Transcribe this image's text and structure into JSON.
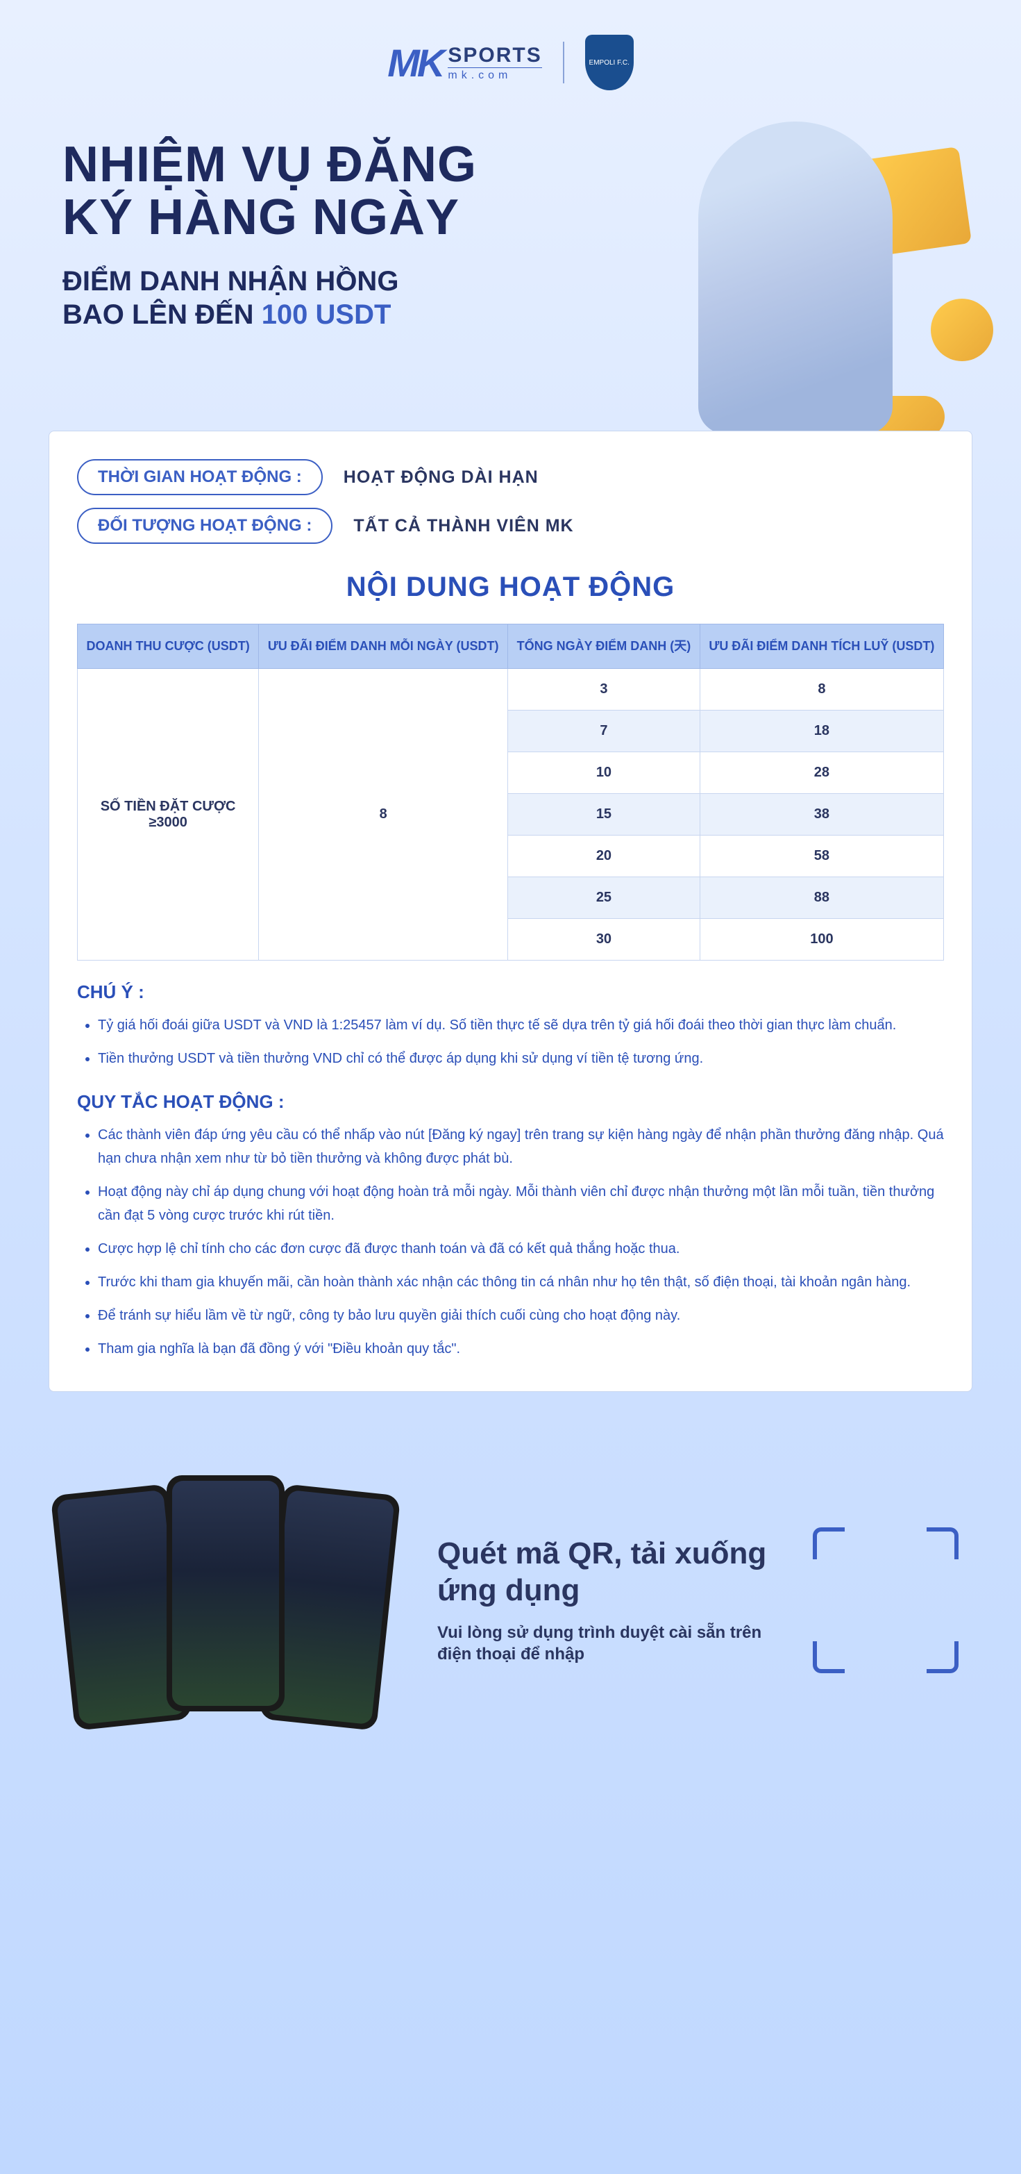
{
  "header": {
    "logo_mk": "MK",
    "logo_sports": "SPORTS",
    "logo_domain": "mk.com",
    "shield_text": "EMPOLI F.C."
  },
  "hero": {
    "title_line1": "NHIỆM VỤ ĐĂNG",
    "title_line2": "KÝ HÀNG NGÀY",
    "subtitle_line1": "ĐIỂM DANH NHẬN HỒNG",
    "subtitle_line2_prefix": "BAO LÊN ĐẾN ",
    "subtitle_amount": "100 USDT"
  },
  "info": {
    "time_label": "THỜI GIAN HOẠT ĐỘNG :",
    "time_value": "HOẠT ĐỘNG DÀI HẠN",
    "target_label": "ĐỐI TƯỢNG HOẠT ĐỘNG :",
    "target_value": "TẤT CẢ THÀNH VIÊN MK"
  },
  "section_title": "NỘI DUNG HOẠT ĐỘNG",
  "table": {
    "headers": {
      "col1": "DOANH THU CƯỢC (USDT)",
      "col2": "ƯU ĐÃI ĐIỂM DANH MỖI NGÀY (USDT)",
      "col3": "TỔNG NGÀY ĐIỂM DANH (天)",
      "col4": "ƯU ĐÃI ĐIỂM DANH TÍCH LUỸ (USDT)"
    },
    "merged_col1": "SỐ TIỀN ĐẶT CƯỢC ≥3000",
    "merged_col2": "8",
    "rows": [
      {
        "days": "3",
        "reward": "8"
      },
      {
        "days": "7",
        "reward": "18"
      },
      {
        "days": "10",
        "reward": "28"
      },
      {
        "days": "15",
        "reward": "38"
      },
      {
        "days": "20",
        "reward": "58"
      },
      {
        "days": "25",
        "reward": "88"
      },
      {
        "days": "30",
        "reward": "100"
      }
    ]
  },
  "notes": {
    "chu_y_title": "CHÚ Ý :",
    "chu_y_items": [
      "Tỷ giá hối đoái giữa USDT và VND là 1:25457 làm ví dụ. Số tiền thực tế sẽ dựa trên tỷ giá hối đoái theo thời gian thực làm chuẩn.",
      "Tiền thưởng USDT và tiền thưởng VND chỉ có thể được áp dụng khi sử dụng ví tiền tệ tương ứng."
    ],
    "quy_tac_title": "QUY TẮC HOẠT ĐỘNG :",
    "quy_tac_items": [
      "Các thành viên đáp ứng yêu cầu có thể nhấp vào nút [Đăng ký ngay] trên trang sự kiện hàng ngày để nhận phần thưởng đăng nhập. Quá hạn chưa nhận xem như từ bỏ tiền thưởng và không được phát bù.",
      "Hoạt động này chỉ áp dụng chung với hoạt động hoàn trả mỗi ngày. Mỗi thành viên chỉ được nhận thưởng một lần mỗi tuần, tiền thưởng cần đạt 5 vòng cược trước khi rút tiền.",
      "Cược hợp lệ chỉ tính cho các đơn cược đã được thanh toán và đã có kết quả thắng hoặc thua.",
      "Trước khi tham gia khuyến mãi, cần hoàn thành xác nhận các thông tin cá nhân như họ tên thật, số điện thoại, tài khoản ngân hàng.",
      "Để tránh sự hiểu lầm về từ ngữ, công ty bảo lưu quyền giải thích cuối cùng cho hoạt động này.",
      "Tham gia nghĩa là bạn đã đồng ý với \"Điều khoản quy tắc\"."
    ]
  },
  "footer": {
    "title": "Quét mã QR, tải xuống ứng dụng",
    "subtitle": "Vui lòng sử dụng trình duyệt cài sẵn trên điện thoại để nhập"
  },
  "colors": {
    "primary_blue": "#3b5fc4",
    "dark_blue": "#2a3560",
    "title_blue": "#2a4fb8",
    "table_header_bg": "#b8cff5",
    "gold": "#ffcc4d"
  }
}
